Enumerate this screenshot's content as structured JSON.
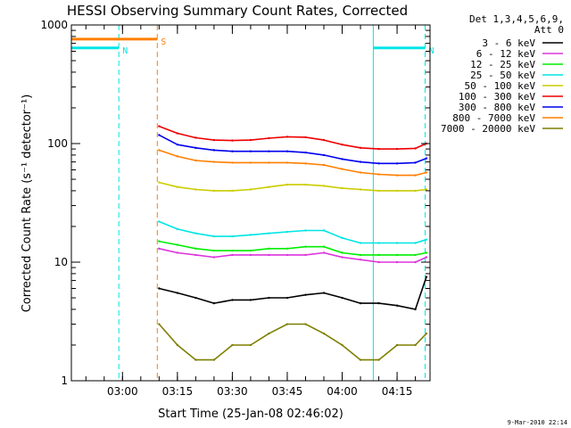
{
  "chart_data": {
    "type": "line",
    "title": "HESSI Observing Summary Count Rates, Corrected",
    "ylabel": "Corrected Count Rate (s⁻¹ detector⁻¹)",
    "xlabel": "Start Time (25-Jan-08 02:46:02)",
    "y_scale": "log",
    "ylim": [
      1,
      1000
    ],
    "xlim": [
      "02:46:02",
      "04:24:00"
    ],
    "y_ticks": [
      "1",
      "10",
      "100",
      "1000"
    ],
    "x_ticks": [
      "03:00",
      "03:15",
      "03:30",
      "03:45",
      "04:00",
      "04:15"
    ],
    "grid": false,
    "legend_header": [
      "Det 1,3,4,5,6,9,",
      "Att 0"
    ],
    "legend_position": "right",
    "footer": "9-Mar-2010 22:14",
    "flag_markers": [
      {
        "label": "N",
        "color": "#00e5e5",
        "start": "02:46:02",
        "end": "02:59:00",
        "level": 640
      },
      {
        "label": "N",
        "color": "#00e5e5",
        "start": "04:08:30",
        "end": "04:22:40",
        "level": 640
      },
      {
        "label": "S",
        "color": "#ff7f00",
        "start": "02:46:02",
        "end": "03:09:30",
        "level": 760
      }
    ],
    "vertical_lines": [
      {
        "time": "02:46:02",
        "color": "#00e5e5",
        "style": "solid"
      },
      {
        "time": "02:59:00",
        "color": "#00e5e5",
        "style": "dashed"
      },
      {
        "time": "03:09:30",
        "color": "#ff7f00",
        "style": "dashed"
      },
      {
        "time": "04:08:30",
        "color": "#00e5e5",
        "style": "solid"
      },
      {
        "time": "04:22:40",
        "color": "#00e5e5",
        "style": "dashed"
      }
    ],
    "x": [
      "03:10",
      "03:15",
      "03:20",
      "03:25",
      "03:30",
      "03:35",
      "03:40",
      "03:45",
      "03:50",
      "03:55",
      "04:00",
      "04:05",
      "04:10",
      "04:15",
      "04:20",
      "04:23"
    ],
    "series": [
      {
        "name": "3 - 6 keV",
        "color": "#000000",
        "values": [
          6,
          5.5,
          5,
          4.5,
          4.8,
          4.8,
          5,
          5,
          5.3,
          5.5,
          5,
          4.5,
          4.5,
          4.3,
          4,
          7.5
        ]
      },
      {
        "name": "6 - 12 keV",
        "color": "#dd33dd",
        "values": [
          13,
          12,
          11.5,
          11,
          11.5,
          11.5,
          11.5,
          11.5,
          11.5,
          12,
          11,
          10.5,
          10,
          10,
          10,
          11
        ]
      },
      {
        "name": "12 - 25 keV",
        "color": "#00ee00",
        "values": [
          15,
          14,
          13,
          12.5,
          12.5,
          12.5,
          13,
          13,
          13.5,
          13.5,
          12,
          11.5,
          11.5,
          11.5,
          11.5,
          12
        ]
      },
      {
        "name": "25 - 50 keV",
        "color": "#00e5e5",
        "values": [
          22,
          19,
          17.5,
          16.5,
          16.5,
          17,
          17.5,
          18,
          18.5,
          18.5,
          16,
          14.5,
          14.5,
          14.5,
          14.5,
          15.5
        ]
      },
      {
        "name": "50 - 100 keV",
        "color": "#cccc00",
        "values": [
          47,
          43,
          41,
          40,
          40,
          41,
          43,
          45,
          45,
          44,
          42,
          41,
          40,
          40,
          40,
          41
        ]
      },
      {
        "name": "100 - 300 keV",
        "color": "#ee0000",
        "values": [
          140,
          122,
          112,
          107,
          106,
          107,
          111,
          114,
          113,
          107,
          98,
          92,
          90,
          90,
          91,
          100
        ]
      },
      {
        "name": "300 - 800 keV",
        "color": "#0000ee",
        "values": [
          118,
          98,
          92,
          88,
          86,
          86,
          86,
          86,
          84,
          80,
          74,
          70,
          68,
          68,
          69,
          75
        ]
      },
      {
        "name": "800 - 7000 keV",
        "color": "#ff7f00",
        "values": [
          88,
          78,
          72,
          70,
          69,
          69,
          69,
          69,
          68,
          66,
          61,
          57,
          55,
          54,
          54,
          57
        ]
      },
      {
        "name": "7000 - 20000 keV",
        "color": "#7f7f00",
        "values": [
          3,
          2,
          1.5,
          1.5,
          2,
          2,
          2.5,
          3,
          3,
          2.5,
          2,
          1.5,
          1.5,
          2,
          2,
          2.5
        ]
      }
    ]
  }
}
